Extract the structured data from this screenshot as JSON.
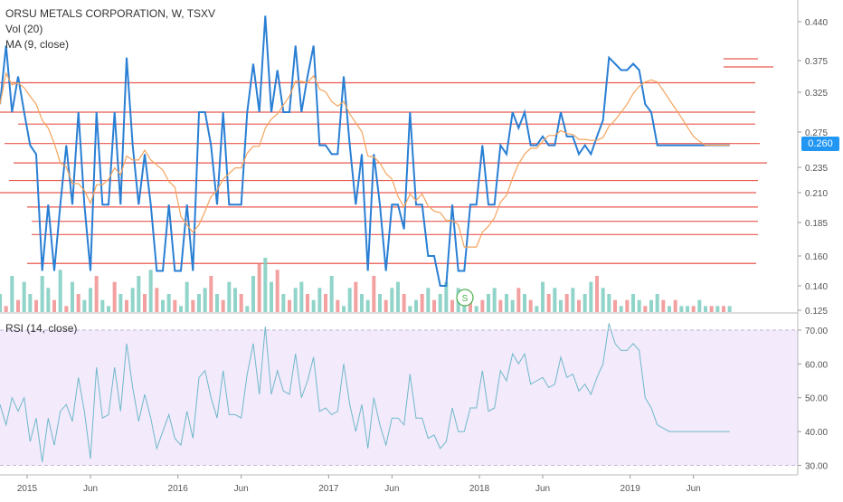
{
  "header": {
    "title": "ORSU METALS CORPORATION, W, TSXV",
    "volume_label": "Vol (20)",
    "ma_label": "MA (9, close)"
  },
  "rsi_panel": {
    "label": "RSI (14, close)"
  },
  "current_price": "0.260",
  "colors": {
    "price_line": "#2a7fd4",
    "ma_line": "#f5a35c",
    "level_lines": "#e8594f",
    "vol_up": "#7ecdc0",
    "vol_down": "#f08f8f",
    "rsi_line": "#6fb9c9",
    "rsi_fill": "#f3eafc",
    "badge": "#2196f3"
  },
  "chart_data": [
    {
      "type": "line",
      "ylim": [
        0.12,
        0.46
      ],
      "y_ticks": [
        "0.440",
        "0.375",
        "0.325",
        "0.275",
        "0.235",
        "0.210",
        "0.185",
        "0.160",
        "0.140",
        "0.125"
      ],
      "y_tick_values": [
        0.44,
        0.375,
        0.325,
        0.275,
        0.235,
        0.21,
        0.185,
        0.16,
        0.14,
        0.125
      ],
      "x_ticks": [
        "2015",
        "Jun",
        "2016",
        "Jun",
        "2017",
        "Jun",
        "2018",
        "Jun",
        "2019",
        "Jun"
      ],
      "x_tick_values": [
        2015.0,
        2015.42,
        2016.0,
        2016.42,
        2017.0,
        2017.42,
        2018.0,
        2018.42,
        2019.0,
        2019.42
      ],
      "xlim": [
        2014.82,
        2019.92
      ],
      "series": [
        {
          "name": "",
          "x": [
            2014.82,
            2014.86,
            2014.9,
            2014.94,
            2014.98,
            2015.02,
            2015.06,
            2015.1,
            2015.14,
            2015.18,
            2015.22,
            2015.26,
            2015.3,
            2015.34,
            2015.38,
            2015.42,
            2015.46,
            2015.5,
            2015.54,
            2015.58,
            2015.62,
            2015.66,
            2015.7,
            2015.74,
            2015.78,
            2015.82,
            2015.86,
            2015.9,
            2015.94,
            2015.98,
            2016.02,
            2016.06,
            2016.1,
            2016.14,
            2016.18,
            2016.22,
            2016.26,
            2016.3,
            2016.34,
            2016.38,
            2016.42,
            2016.46,
            2016.5,
            2016.54,
            2016.58,
            2016.62,
            2016.66,
            2016.7,
            2016.74,
            2016.78,
            2016.82,
            2016.86,
            2016.9,
            2016.94,
            2016.98,
            2017.02,
            2017.06,
            2017.1,
            2017.14,
            2017.18,
            2017.22,
            2017.26,
            2017.3,
            2017.34,
            2017.38,
            2017.42,
            2017.46,
            2017.5,
            2017.54,
            2017.58,
            2017.62,
            2017.66,
            2017.7,
            2017.74,
            2017.78,
            2017.82,
            2017.86,
            2017.9,
            2017.94,
            2017.98,
            2018.02,
            2018.06,
            2018.1,
            2018.14,
            2018.18,
            2018.22,
            2018.26,
            2018.3,
            2018.34,
            2018.38,
            2018.42,
            2018.46,
            2018.5,
            2018.54,
            2018.58,
            2018.62,
            2018.66,
            2018.7,
            2018.74,
            2018.78,
            2018.82,
            2018.86,
            2018.9,
            2018.94,
            2018.98,
            2019.02,
            2019.06,
            2019.1,
            2019.14,
            2019.18,
            2019.22,
            2019.26,
            2019.3,
            2019.34,
            2019.38,
            2019.42,
            2019.46,
            2019.5,
            2019.54,
            2019.58,
            2019.62,
            2019.66
          ],
          "values": [
            0.31,
            0.4,
            0.3,
            0.35,
            0.3,
            0.26,
            0.25,
            0.15,
            0.2,
            0.15,
            0.2,
            0.26,
            0.2,
            0.3,
            0.2,
            0.15,
            0.3,
            0.2,
            0.2,
            0.3,
            0.2,
            0.38,
            0.26,
            0.2,
            0.25,
            0.2,
            0.15,
            0.15,
            0.2,
            0.15,
            0.15,
            0.2,
            0.15,
            0.3,
            0.3,
            0.26,
            0.2,
            0.3,
            0.2,
            0.2,
            0.2,
            0.3,
            0.37,
            0.3,
            0.45,
            0.3,
            0.36,
            0.3,
            0.3,
            0.4,
            0.3,
            0.35,
            0.4,
            0.26,
            0.26,
            0.25,
            0.25,
            0.35,
            0.26,
            0.2,
            0.25,
            0.15,
            0.25,
            0.2,
            0.15,
            0.2,
            0.2,
            0.18,
            0.3,
            0.2,
            0.2,
            0.16,
            0.16,
            0.14,
            0.14,
            0.2,
            0.15,
            0.15,
            0.2,
            0.2,
            0.26,
            0.2,
            0.2,
            0.26,
            0.25,
            0.3,
            0.28,
            0.3,
            0.26,
            0.26,
            0.27,
            0.26,
            0.26,
            0.3,
            0.27,
            0.27,
            0.25,
            0.26,
            0.25,
            0.27,
            0.29,
            0.38,
            0.37,
            0.36,
            0.36,
            0.37,
            0.36,
            0.31,
            0.3,
            0.26,
            0.26,
            0.26,
            0.26,
            0.26,
            0.26,
            0.26,
            0.26,
            0.26,
            0.26,
            0.26,
            0.26,
            0.26
          ]
        }
      ],
      "volume": {
        "values": [
          3,
          1,
          6,
          2,
          5,
          3,
          2,
          6,
          4,
          2,
          7,
          1,
          5,
          3,
          2,
          4,
          6,
          2,
          1,
          5,
          3,
          2,
          4,
          6,
          3,
          7,
          4,
          2,
          3,
          2,
          1,
          5,
          2,
          3,
          4,
          6,
          3,
          2,
          5,
          4,
          3,
          1,
          6,
          8,
          9,
          5,
          7,
          3,
          2,
          4,
          5,
          3,
          2,
          4,
          3,
          6,
          2,
          1,
          4,
          5,
          3,
          2,
          6,
          3,
          2,
          4,
          5,
          3,
          1,
          2,
          3,
          4,
          2,
          3,
          5,
          2,
          4,
          3,
          2,
          1,
          2,
          3,
          4,
          2,
          3,
          2,
          4,
          3,
          2,
          1,
          5,
          3,
          4,
          2,
          3,
          4,
          2,
          3,
          5,
          6,
          4,
          3,
          2,
          1,
          2,
          3,
          2,
          1,
          2,
          3,
          2,
          1,
          2,
          1,
          1,
          1,
          2,
          1,
          1,
          1,
          1,
          1
        ],
        "up": [
          true,
          false,
          true,
          false,
          true,
          true,
          false,
          true,
          true,
          false,
          true,
          false,
          true,
          false,
          true,
          true,
          false,
          true,
          true,
          false,
          true,
          false,
          true,
          true,
          false,
          true,
          false,
          true,
          true,
          false,
          true,
          true,
          false,
          true,
          true,
          false,
          true,
          false,
          true,
          true,
          false,
          true,
          true,
          false,
          true,
          true,
          false,
          true,
          false,
          true,
          true,
          false,
          true,
          true,
          false,
          true,
          false,
          true,
          true,
          false,
          true,
          true,
          false,
          true,
          false,
          true,
          true,
          false,
          true,
          true,
          false,
          true,
          false,
          true,
          true,
          false,
          true,
          true,
          false,
          true,
          false,
          true,
          true,
          false,
          true,
          true,
          false,
          true,
          false,
          true,
          true,
          false,
          true,
          true,
          false,
          true,
          false,
          true,
          true,
          false,
          true,
          true,
          false,
          true,
          false,
          true,
          true,
          false,
          true,
          true,
          false,
          true,
          false,
          true,
          true,
          false,
          true,
          true,
          false,
          true,
          false,
          true
        ]
      }
    },
    {
      "type": "line",
      "ylim": [
        28,
        74
      ],
      "y_ticks": [
        "70.00",
        "60.00",
        "50.00",
        "40.00",
        "30.00"
      ],
      "y_tick_values": [
        70,
        60,
        50,
        40,
        30
      ],
      "xlim": [
        2014.82,
        2019.92
      ],
      "series": [
        {
          "name": "",
          "x": [
            2014.82,
            2014.86,
            2014.9,
            2014.94,
            2014.98,
            2015.02,
            2015.06,
            2015.1,
            2015.14,
            2015.18,
            2015.22,
            2015.26,
            2015.3,
            2015.34,
            2015.38,
            2015.42,
            2015.46,
            2015.5,
            2015.54,
            2015.58,
            2015.62,
            2015.66,
            2015.7,
            2015.74,
            2015.78,
            2015.82,
            2015.86,
            2015.9,
            2015.94,
            2015.98,
            2016.02,
            2016.06,
            2016.1,
            2016.14,
            2016.18,
            2016.22,
            2016.26,
            2016.3,
            2016.34,
            2016.38,
            2016.42,
            2016.46,
            2016.5,
            2016.54,
            2016.58,
            2016.62,
            2016.66,
            2016.7,
            2016.74,
            2016.78,
            2016.82,
            2016.86,
            2016.9,
            2016.94,
            2016.98,
            2017.02,
            2017.06,
            2017.1,
            2017.14,
            2017.18,
            2017.22,
            2017.26,
            2017.3,
            2017.34,
            2017.38,
            2017.42,
            2017.46,
            2017.5,
            2017.54,
            2017.58,
            2017.62,
            2017.66,
            2017.7,
            2017.74,
            2017.78,
            2017.82,
            2017.86,
            2017.9,
            2017.94,
            2017.98,
            2018.02,
            2018.06,
            2018.1,
            2018.14,
            2018.18,
            2018.22,
            2018.26,
            2018.3,
            2018.34,
            2018.38,
            2018.42,
            2018.46,
            2018.5,
            2018.54,
            2018.58,
            2018.62,
            2018.66,
            2018.7,
            2018.74,
            2018.78,
            2018.82,
            2018.86,
            2018.9,
            2018.94,
            2018.98,
            2019.02,
            2019.06,
            2019.1,
            2019.14,
            2019.18,
            2019.22,
            2019.26,
            2019.3,
            2019.34,
            2019.38,
            2019.42,
            2019.46,
            2019.5,
            2019.54,
            2019.58,
            2019.62,
            2019.66
          ],
          "values": [
            48,
            42,
            50,
            46,
            50,
            37,
            44,
            31,
            44,
            36,
            46,
            48,
            43,
            56,
            46,
            32,
            59,
            44,
            45,
            59,
            46,
            66,
            53,
            43,
            51,
            44,
            35,
            40,
            45,
            38,
            36,
            46,
            38,
            56,
            58,
            50,
            44,
            58,
            45,
            45,
            44,
            57,
            66,
            51,
            71,
            51,
            58,
            52,
            51,
            63,
            50,
            55,
            62,
            46,
            47,
            45,
            46,
            60,
            48,
            40,
            48,
            35,
            50,
            42,
            36,
            44,
            44,
            42,
            57,
            44,
            44,
            38,
            39,
            35,
            37,
            47,
            40,
            40,
            47,
            47,
            58,
            46,
            47,
            58,
            55,
            63,
            60,
            63,
            54,
            55,
            56,
            53,
            54,
            62,
            56,
            57,
            52,
            54,
            51,
            56,
            60,
            72,
            66,
            64,
            64,
            66,
            64,
            50,
            47,
            42,
            41,
            40,
            40,
            40,
            40,
            40,
            40,
            40,
            40,
            40,
            40,
            40
          ]
        }
      ]
    }
  ]
}
